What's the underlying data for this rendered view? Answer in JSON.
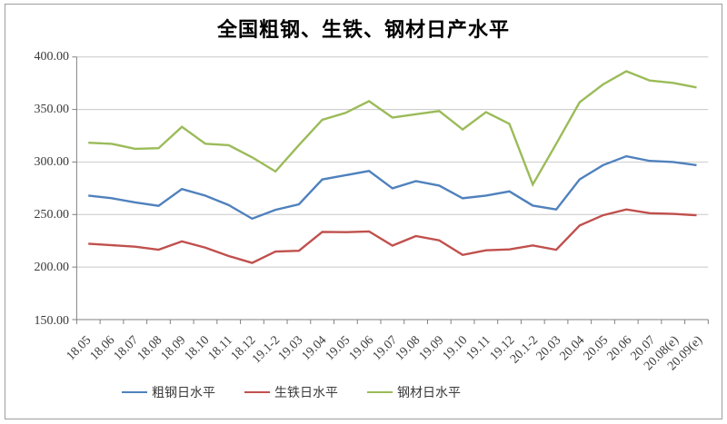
{
  "title": "全国粗钢、生铁、钢材日产水平",
  "chart_data": {
    "type": "line",
    "title": "全国粗钢、生铁、钢材日产水平",
    "categories": [
      "18.05",
      "18.06",
      "18.07",
      "18.08",
      "18.09",
      "18.10",
      "18.11",
      "18.12",
      "19.1-2",
      "19.03",
      "19.04",
      "19.05",
      "19.06",
      "19.07",
      "19.08",
      "19.09",
      "19.10",
      "19.11",
      "19.12",
      "20.1-2",
      "20.03",
      "20.04",
      "20.05",
      "20.06",
      "20.07",
      "20.08(e)",
      "20.09(e)"
    ],
    "series": [
      {
        "name": "粗钢日水平",
        "color": "#4F81BD",
        "values": [
          268.1,
          265.5,
          261.5,
          258.3,
          274.3,
          268.0,
          259.0,
          246.0,
          254.5,
          259.7,
          283.4,
          287.4,
          291.5,
          275.0,
          281.8,
          277.5,
          265.5,
          268.0,
          272.0,
          258.5,
          254.8,
          283.4,
          297.0,
          305.5,
          301.0,
          300.0,
          297.0
        ]
      },
      {
        "name": "生铁日水平",
        "color": "#C0504D",
        "values": [
          222.2,
          220.8,
          219.4,
          216.5,
          224.4,
          218.5,
          210.5,
          204.0,
          214.8,
          215.5,
          233.5,
          233.2,
          233.9,
          220.4,
          229.5,
          225.4,
          211.5,
          215.9,
          216.8,
          220.6,
          216.4,
          239.5,
          249.3,
          254.8,
          251.3,
          250.6,
          249.3
        ]
      },
      {
        "name": "钢材日水平",
        "color": "#9BBB59",
        "values": [
          318.4,
          317.3,
          312.6,
          313.2,
          333.5,
          317.4,
          316.0,
          304.5,
          291.0,
          316.1,
          340.2,
          346.8,
          357.9,
          342.3,
          345.4,
          348.5,
          331.0,
          347.5,
          336.3,
          278.6,
          317.3,
          356.8,
          373.8,
          386.4,
          377.5,
          375.3,
          371.0
        ]
      }
    ],
    "ylim": [
      150,
      400
    ],
    "ytick_step": 50,
    "ytick_labels": [
      "400.00",
      "350.00",
      "300.00",
      "250.00",
      "200.00",
      "150.00"
    ],
    "grid": true,
    "legend_position": "bottom",
    "axis_color": "#808080",
    "grid_color": "#c8c8c8"
  }
}
